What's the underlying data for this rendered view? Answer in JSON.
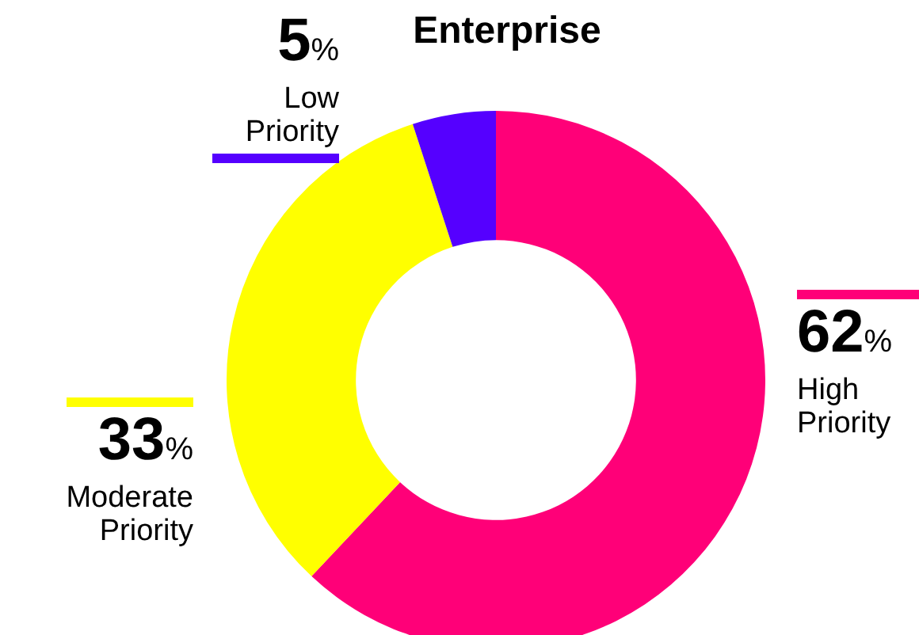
{
  "chart_data": {
    "type": "donut",
    "title": "Enterprise",
    "categories": [
      "High Priority",
      "Moderate Priority",
      "Low Priority"
    ],
    "values": [
      62,
      33,
      5
    ],
    "colors": [
      "#ff0078",
      "#ffff00",
      "#5500ff"
    ],
    "value_labels": [
      "62%",
      "33%",
      "5%"
    ],
    "legend": false
  }
}
